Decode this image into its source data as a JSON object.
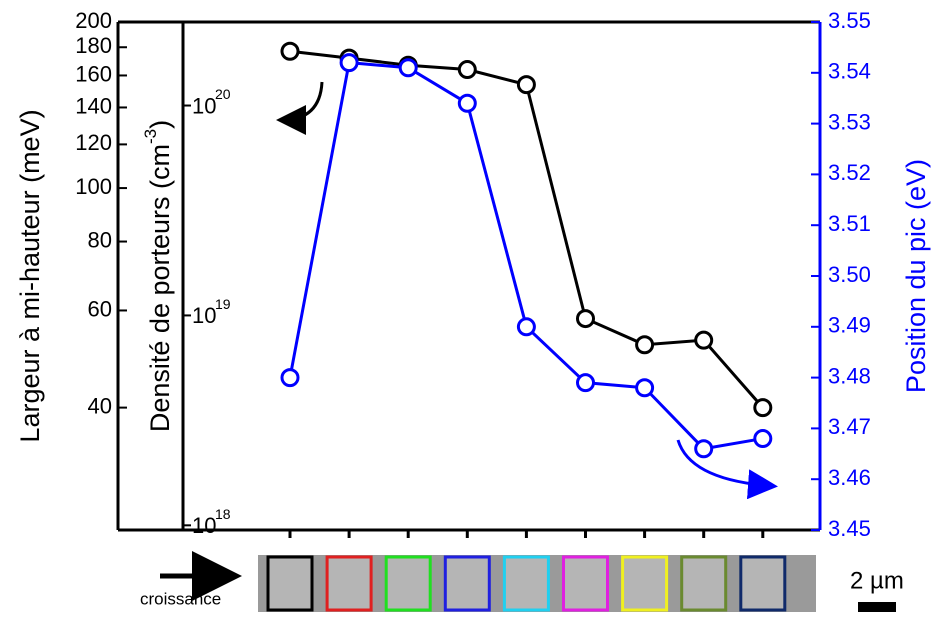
{
  "chart_data": {
    "type": "line",
    "categories": [
      null,
      null,
      null,
      null,
      null,
      null,
      null,
      null,
      null
    ],
    "series": [
      {
        "name": "Largeur à mi-hauteur",
        "color": "#000000",
        "axis": "y",
        "values": [
          177,
          172,
          167,
          164,
          154,
          58,
          52,
          53,
          40
        ]
      },
      {
        "name": "Position du pic",
        "color": "#0000ff",
        "axis": "y2",
        "values": [
          3.48,
          3.542,
          3.541,
          3.534,
          3.49,
          3.479,
          3.478,
          3.466,
          3.468
        ]
      }
    ],
    "ylabel": "Largeur à mi-hauteur (meV)",
    "ylog": true,
    "ylim": [
      24,
      200
    ],
    "yticks": [
      40,
      60,
      80,
      100,
      120,
      140,
      160,
      180,
      200
    ],
    "y2label": "Position du pic (eV)",
    "y2color": "#0000ff",
    "y2lim": [
      3.45,
      3.55
    ],
    "y2ticks": [
      3.45,
      3.46,
      3.47,
      3.48,
      3.49,
      {
        "value": 3.5,
        "label": "3.50"
      },
      3.51,
      3.52,
      3.53,
      3.54,
      3.55
    ],
    "y3label": "Densité de porteurs (cm",
    "y3label_sup": "-3",
    "y3label_end": ")",
    "y3log": true,
    "y3lim": [
      9.5e+17,
      2.5e+20
    ],
    "y3ticks": [
      {
        "value": 1e+18,
        "label": "10",
        "sup": "18"
      },
      {
        "value": 1e+19,
        "label": "10",
        "sup": "19"
      },
      {
        "value": 1e+20,
        "label": "10",
        "sup": "20"
      }
    ],
    "strip_colors": [
      "#000000",
      "#e02020",
      "#20e020",
      "#2020e0",
      "#20d0f0",
      "#e020e0",
      "#f0f020",
      "#6a8a30",
      "#102a6a"
    ],
    "strip_label": "croissance",
    "scale_label": "2 µm"
  }
}
